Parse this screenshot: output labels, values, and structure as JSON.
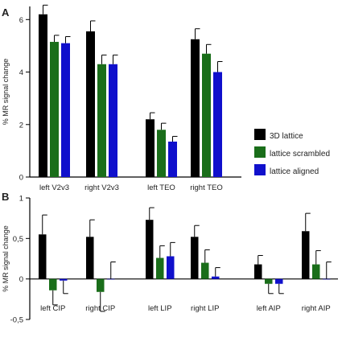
{
  "panels": [
    "A",
    "B"
  ],
  "legend": {
    "placement": "right-middle",
    "entries": [
      {
        "name": "3D lattice",
        "color": "#000000"
      },
      {
        "name": "lattice scrambled",
        "color": "#1a6e1a"
      },
      {
        "name": "lattice aligned",
        "color": "#1010cc"
      }
    ]
  },
  "chart_data": [
    {
      "type": "bar",
      "panel": "A",
      "ylabel": "% MR signal change",
      "ylim": [
        0,
        6.5
      ],
      "yticks": [
        "0",
        "2",
        "4",
        "6"
      ],
      "ytick_values": [
        0,
        2,
        4,
        6
      ],
      "categories": [
        "left V2v3",
        "right V2v3",
        "left TEO",
        "right TEO"
      ],
      "series": [
        {
          "name": "3D lattice",
          "color": "#000000",
          "values": [
            6.2,
            5.55,
            2.2,
            5.25
          ],
          "errors": [
            0.35,
            0.4,
            0.25,
            0.4
          ]
        },
        {
          "name": "lattice scrambled",
          "color": "#1a6e1a",
          "values": [
            5.15,
            4.3,
            1.8,
            4.7
          ],
          "errors": [
            0.25,
            0.35,
            0.25,
            0.35
          ]
        },
        {
          "name": "lattice aligned",
          "color": "#1010cc",
          "values": [
            5.1,
            4.3,
            1.35,
            4.0
          ],
          "errors": [
            0.25,
            0.35,
            0.2,
            0.4
          ]
        }
      ]
    },
    {
      "type": "bar",
      "panel": "B",
      "ylabel": "% MR signal change",
      "ylim": [
        -0.5,
        1.0
      ],
      "yticks": [
        "-0,5",
        "0",
        "0,5",
        "1"
      ],
      "ytick_values": [
        -0.5,
        0,
        0.5,
        1
      ],
      "categories": [
        "left CIP",
        "right CIP",
        "left LIP",
        "right LIP",
        "left AIP",
        "right AIP"
      ],
      "series": [
        {
          "name": "3D lattice",
          "color": "#000000",
          "values": [
            0.55,
            0.52,
            0.73,
            0.52,
            0.18,
            0.59
          ],
          "errors": [
            0.24,
            0.21,
            0.15,
            0.14,
            0.11,
            0.22
          ]
        },
        {
          "name": "lattice scrambled",
          "color": "#1a6e1a",
          "values": [
            -0.14,
            -0.16,
            0.26,
            0.2,
            -0.06,
            0.18
          ],
          "errors": [
            0.18,
            0.24,
            0.15,
            0.16,
            0.12,
            0.17
          ]
        },
        {
          "name": "lattice aligned",
          "color": "#1010cc",
          "values": [
            -0.02,
            0,
            0.28,
            0.03,
            -0.06,
            0
          ],
          "errors": [
            0.16,
            0.21,
            0.17,
            0.11,
            0.12,
            0.21
          ]
        }
      ]
    }
  ]
}
